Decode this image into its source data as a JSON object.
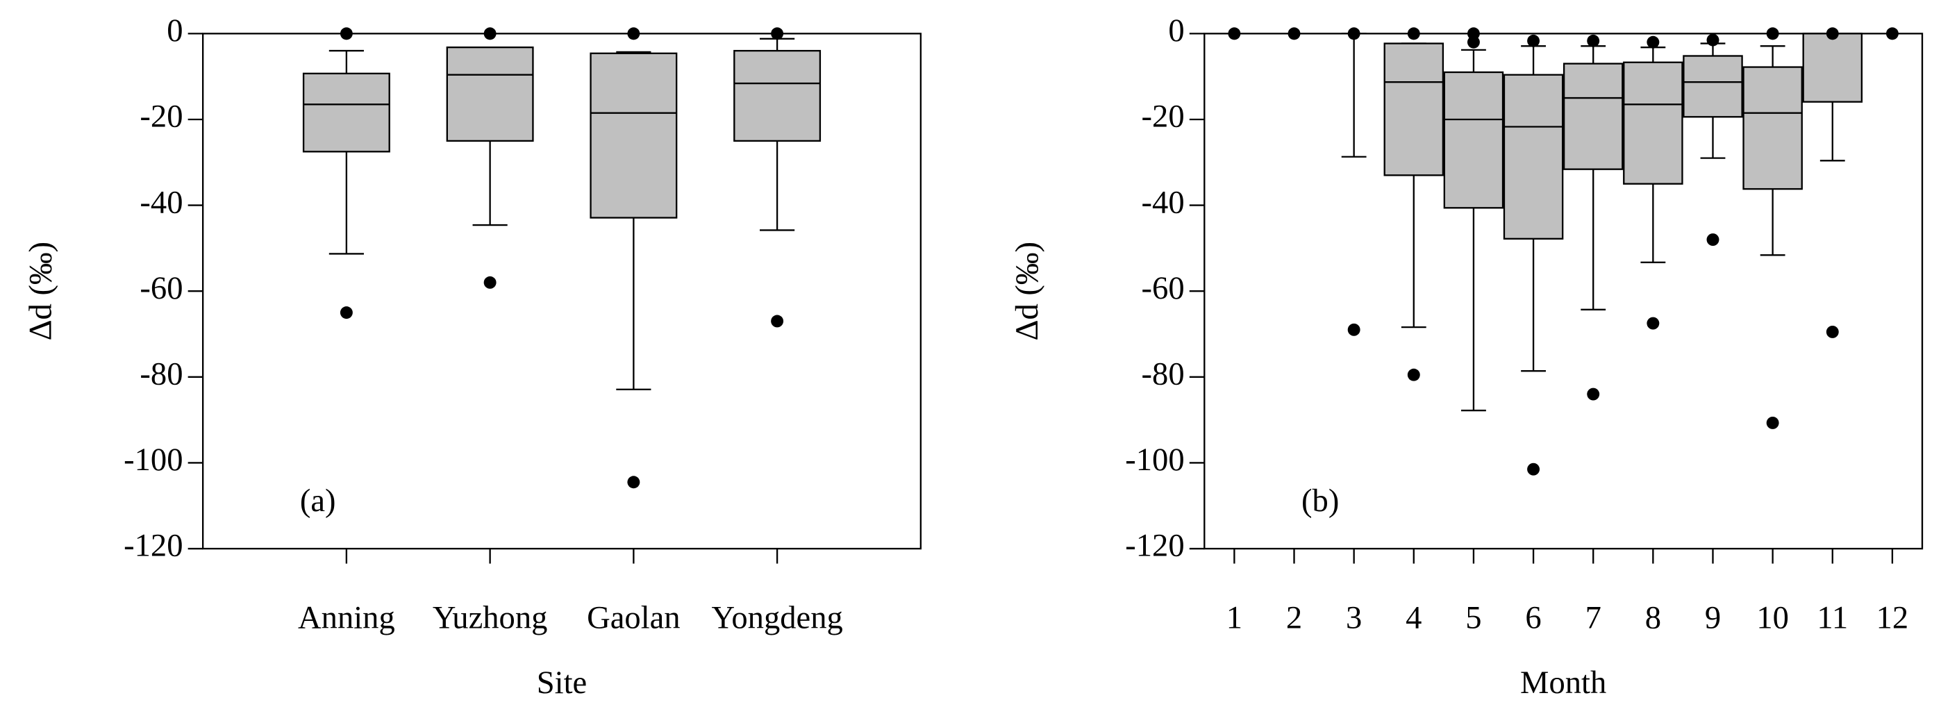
{
  "chart_data": [
    {
      "type": "box",
      "annotation": "(a)",
      "x_label": "Site",
      "y_label": "Δd (‰)",
      "categories": [
        "Anning",
        "Yuzhong",
        "Gaolan",
        "Yongdeng"
      ],
      "color": "#c0c0c0",
      "boxes": [
        {
          "low": -51.3,
          "q1": -27.5,
          "median": -16.5,
          "q3": -9.3,
          "high": -4,
          "outliers": [
            0,
            -65
          ]
        },
        {
          "low": -44.6,
          "q1": -25,
          "median": -9.6,
          "q3": -3.2,
          "high": -3.2,
          "outliers": [
            0,
            -58
          ]
        },
        {
          "low": -82.9,
          "q1": -42.9,
          "median": -18.5,
          "q3": -4.6,
          "high": -4.3,
          "outliers": [
            0,
            -104.5
          ]
        },
        {
          "low": -45.8,
          "q1": -25,
          "median": -11.6,
          "q3": -4,
          "high": -1.2,
          "outliers": [
            0,
            -67
          ]
        }
      ],
      "ylim": [
        -120,
        0
      ],
      "yticks": [
        -120,
        -100,
        -80,
        -60,
        -40,
        -20,
        0
      ]
    },
    {
      "type": "box",
      "annotation": "(b)",
      "x_label": "Month",
      "y_label": "Δd (‰)",
      "categories": [
        "1",
        "2",
        "3",
        "4",
        "5",
        "6",
        "7",
        "8",
        "9",
        "10",
        "11",
        "12"
      ],
      "color": "#c0c0c0",
      "boxes": [
        {
          "low": null,
          "q1": null,
          "median": null,
          "q3": null,
          "high": null,
          "outliers": [
            0
          ]
        },
        {
          "low": null,
          "q1": null,
          "median": null,
          "q3": null,
          "high": null,
          "outliers": [
            0
          ]
        },
        {
          "low": -28.7,
          "q1": null,
          "median": null,
          "q3": null,
          "high": 0,
          "outliers": [
            0,
            -69
          ]
        },
        {
          "low": -68.4,
          "q1": -33,
          "median": -11.3,
          "q3": -2.3,
          "high": -2.3,
          "outliers": [
            0,
            -79.5
          ]
        },
        {
          "low": -87.8,
          "q1": -40.6,
          "median": -20,
          "q3": -9,
          "high": -3.8,
          "outliers": [
            -2,
            0
          ]
        },
        {
          "low": -78.6,
          "q1": -47.8,
          "median": -21.7,
          "q3": -9.6,
          "high": -2.9,
          "outliers": [
            -1.7,
            -101.5
          ]
        },
        {
          "low": -64.3,
          "q1": -31.6,
          "median": -15,
          "q3": -7,
          "high": -2.9,
          "outliers": [
            -1.7,
            -84
          ]
        },
        {
          "low": -53.3,
          "q1": -35,
          "median": -16.5,
          "q3": -6.7,
          "high": -3.2,
          "outliers": [
            -2,
            -67.5
          ]
        },
        {
          "low": -29,
          "q1": -19.4,
          "median": -11.3,
          "q3": -5.2,
          "high": -2.3,
          "outliers": [
            -1.5,
            -48
          ]
        },
        {
          "low": -51.6,
          "q1": -36.2,
          "median": -18.5,
          "q3": -7.8,
          "high": -2.9,
          "outliers": [
            0,
            -90.7
          ]
        },
        {
          "low": -29.6,
          "q1": -15.9,
          "median": 0,
          "q3": 0,
          "high": null,
          "outliers": [
            0,
            -69.5
          ]
        },
        {
          "low": null,
          "q1": null,
          "median": null,
          "q3": null,
          "high": null,
          "outliers": [
            0
          ]
        }
      ],
      "ylim": [
        -120,
        0
      ],
      "yticks": [
        -120,
        -100,
        -80,
        -60,
        -40,
        -20,
        0
      ]
    }
  ]
}
